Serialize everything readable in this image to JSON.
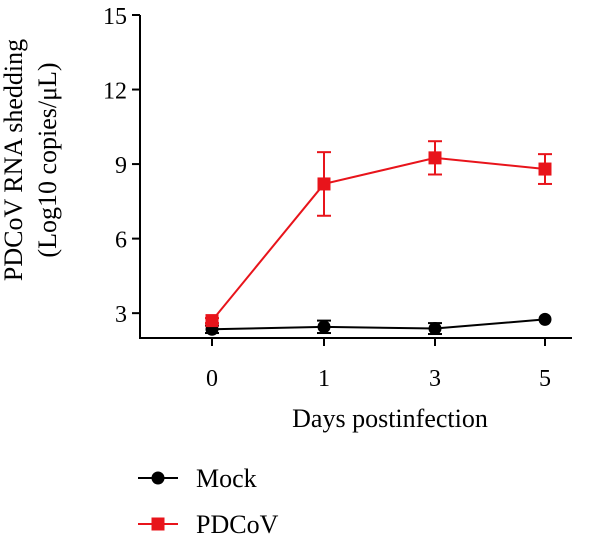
{
  "chart_data": {
    "type": "line",
    "xlabel": "Days postinfection",
    "ylabel_line1": "PDCoV RNA shedding",
    "ylabel_line2": "(Log10 copies/μL)",
    "categories": [
      "0",
      "1",
      "3",
      "5"
    ],
    "yticks": [
      3,
      6,
      9,
      12,
      15
    ],
    "ylim": [
      2,
      15
    ],
    "grid": false,
    "legend_position": "bottom-left",
    "series": [
      {
        "name": "Mock",
        "color": "#000000",
        "marker": "circle",
        "values": [
          2.35,
          2.45,
          2.38,
          2.75
        ],
        "errors": [
          0.15,
          0.25,
          0.22,
          0.05
        ]
      },
      {
        "name": "PDCoV",
        "color": "#e8141b",
        "marker": "square",
        "values": [
          2.7,
          8.2,
          9.25,
          8.8
        ],
        "errors": [
          0.1,
          1.28,
          0.67,
          0.6
        ]
      }
    ]
  }
}
